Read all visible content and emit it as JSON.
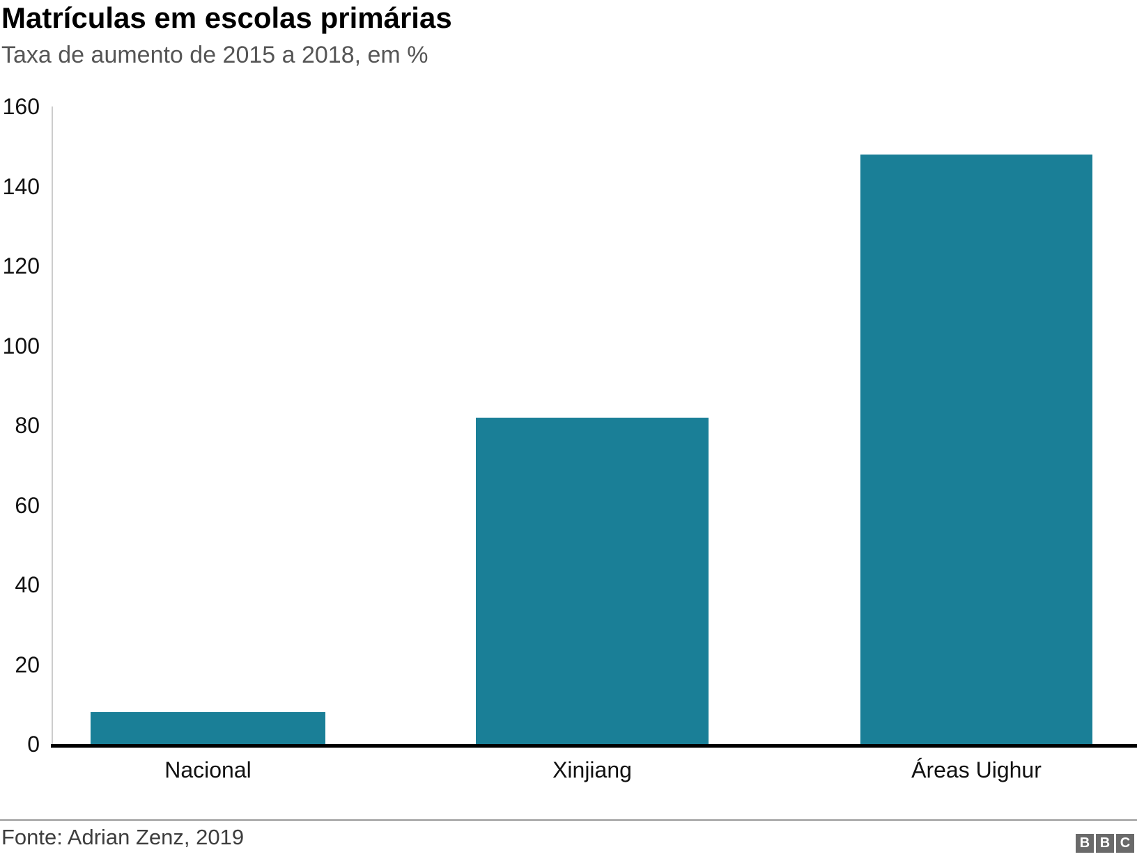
{
  "header": {
    "title": "Matrículas em escolas primárias",
    "subtitle": "Taxa de aumento de 2015 a 2018, em %"
  },
  "chart_data": {
    "type": "bar",
    "categories": [
      "Nacional",
      "Xinjiang",
      "Áreas Uighur"
    ],
    "values": [
      8,
      82,
      148
    ],
    "title": "Matrículas em escolas primárias",
    "subtitle": "Taxa de aumento de 2015 a 2018, em %",
    "xlabel": "",
    "ylabel": "",
    "ylim": [
      0,
      160
    ],
    "yticks": [
      0,
      20,
      40,
      60,
      80,
      100,
      120,
      140,
      160
    ],
    "grid": false,
    "legend": false,
    "bar_color": "#1A7F97"
  },
  "footer": {
    "source": "Fonte: Adrian Zenz, 2019",
    "logo_letters": [
      "B",
      "B",
      "C"
    ]
  },
  "colors": {
    "title": "#000000",
    "subtitle": "#555555",
    "axis_label": "#111111",
    "y_axis_line": "#cccccc",
    "x_axis_line": "#000000",
    "divider": "#999999",
    "source_text": "#3d3d3d",
    "logo_block": "#6a6a6a",
    "bar": "#1A7F97"
  }
}
